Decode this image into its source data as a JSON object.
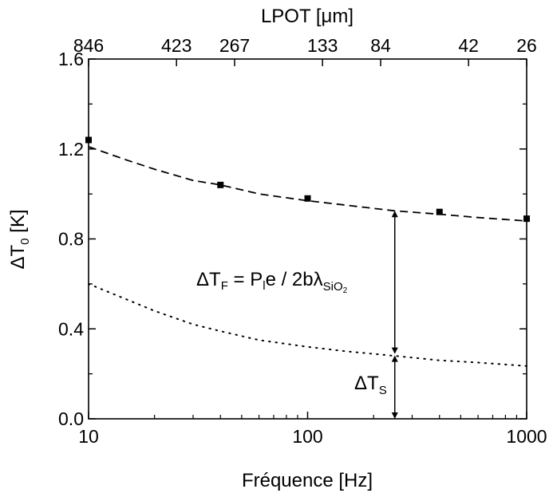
{
  "chart_data": {
    "type": "scatter",
    "xlabel": "Fréquence [Hz]",
    "x_scale": "log",
    "xlim": [
      10,
      1000
    ],
    "x_ticks": [
      {
        "value": 10,
        "label": "10"
      },
      {
        "value": 100,
        "label": "100"
      },
      {
        "value": 1000,
        "label": "1000"
      }
    ],
    "ylabel": {
      "base": "ΔT",
      "sub": "0",
      "rest": " [K]"
    },
    "ylim": [
      0.0,
      1.6
    ],
    "y_ticks": [
      {
        "value": 0.0,
        "label": "0.0"
      },
      {
        "value": 0.4,
        "label": "0.4"
      },
      {
        "value": 0.8,
        "label": "0.8"
      },
      {
        "value": 1.2,
        "label": "1.2"
      },
      {
        "value": 1.6,
        "label": "1.6"
      }
    ],
    "top_axis": {
      "label": "LPOT [μm]",
      "ticks": [
        {
          "x": 10,
          "label": "846"
        },
        {
          "x": 40,
          "label": "423"
        },
        {
          "x": 100,
          "label": "267"
        },
        {
          "x": 400,
          "label": "133"
        },
        {
          "x": 1000,
          "label": "84"
        },
        {
          "x": 4000,
          "label": "42"
        },
        {
          "x": 10000,
          "label": "26"
        }
      ]
    },
    "grid": false,
    "series": [
      {
        "style": "markers",
        "marker": "square",
        "points": [
          {
            "x": 10,
            "y": 1.24
          },
          {
            "x": 40,
            "y": 1.04
          },
          {
            "x": 100,
            "y": 0.98
          },
          {
            "x": 400,
            "y": 0.92
          },
          {
            "x": 1000,
            "y": 0.89
          }
        ]
      },
      {
        "style": "dashed",
        "points": [
          {
            "x": 10,
            "y": 1.21
          },
          {
            "x": 15,
            "y": 1.15
          },
          {
            "x": 20,
            "y": 1.11
          },
          {
            "x": 30,
            "y": 1.06
          },
          {
            "x": 40,
            "y": 1.04
          },
          {
            "x": 60,
            "y": 1.0
          },
          {
            "x": 100,
            "y": 0.97
          },
          {
            "x": 150,
            "y": 0.95
          },
          {
            "x": 250,
            "y": 0.925
          },
          {
            "x": 400,
            "y": 0.91
          },
          {
            "x": 600,
            "y": 0.895
          },
          {
            "x": 1000,
            "y": 0.88
          }
        ]
      },
      {
        "style": "dotted",
        "points": [
          {
            "x": 10,
            "y": 0.6
          },
          {
            "x": 15,
            "y": 0.53
          },
          {
            "x": 20,
            "y": 0.48
          },
          {
            "x": 30,
            "y": 0.42
          },
          {
            "x": 40,
            "y": 0.39
          },
          {
            "x": 60,
            "y": 0.35
          },
          {
            "x": 100,
            "y": 0.32
          },
          {
            "x": 150,
            "y": 0.3
          },
          {
            "x": 250,
            "y": 0.28
          },
          {
            "x": 400,
            "y": 0.26
          },
          {
            "x": 600,
            "y": 0.25
          },
          {
            "x": 1000,
            "y": 0.235
          }
        ]
      }
    ],
    "annotations": {
      "arrow_x": 250,
      "vertical_arrow": {
        "x": 250,
        "y_bottom": 0.0,
        "y_mid": 0.285,
        "y_top": 0.925
      },
      "delta_tf": {
        "label": {
          "a": "ΔT",
          "a_sub": "F",
          "b": " = P",
          "b_sub": "l",
          "c": "e / 2bλ",
          "c_sub": "SiO",
          "c_subsub": "2"
        }
      },
      "delta_ts": {
        "label": {
          "a": "ΔT",
          "a_sub": "S"
        }
      }
    }
  }
}
